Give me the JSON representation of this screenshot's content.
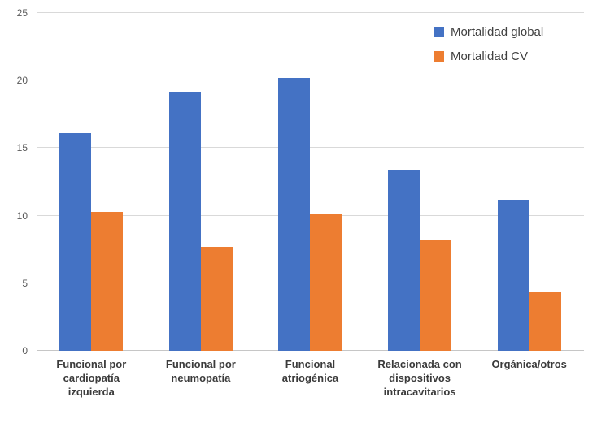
{
  "chart_data": {
    "type": "bar",
    "title": "",
    "xlabel": "",
    "ylabel": "",
    "categories": [
      "Funcional por cardiopatía izquierda",
      "Funcional por neumopatía",
      "Funcional atriogénica",
      "Relacionada con dispositivos intracavitarios",
      "Orgánica/otros"
    ],
    "series": [
      {
        "name": "Mortalidad global",
        "color": "#4472C4",
        "values": [
          16.1,
          19.2,
          20.2,
          13.4,
          11.2
        ]
      },
      {
        "name": "Mortalidad CV",
        "color": "#ED7D31",
        "values": [
          10.3,
          7.7,
          10.1,
          8.2,
          4.3
        ]
      }
    ],
    "ylim": [
      0,
      25
    ],
    "yticks": [
      0,
      5,
      10,
      15,
      20,
      25
    ],
    "grid": true,
    "legend_position": "top-right"
  },
  "colors": {
    "series_blue": "#4472C4",
    "series_orange": "#ED7D31",
    "gridline": "#d9d9d9",
    "axis_line": "#c6c6c6",
    "y_tick_text": "#595959",
    "x_tick_text": "#3b3b3b",
    "legend_text": "#404040",
    "background": "#ffffff"
  }
}
